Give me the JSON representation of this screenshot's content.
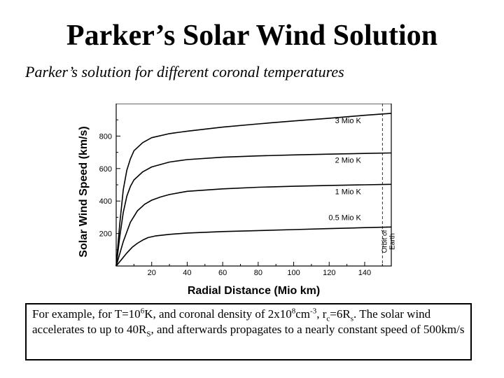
{
  "slide": {
    "title": "Parker’s Solar Wind Solution",
    "subtitle": "Parker’s solution for different coronal temperatures"
  },
  "note": {
    "t1": "For example, for T=10",
    "sup1": "6",
    "t2": "K, and coronal density of  2x10",
    "sup2": "8",
    "t3": "cm",
    "sup3": "-3",
    "t4": ", r",
    "sub4": "c",
    "t5": "=6R",
    "sub5": "s",
    "t6": ". The solar wind accelerates to up to 40R",
    "sub6": "S",
    "t7": ", and afterwards propagates to a nearly constant speed of 500km/s"
  },
  "chart_data": {
    "type": "line",
    "title": "",
    "xlabel": "Radial Distance (Mio km)",
    "ylabel": "Solar Wind Speed (km/s)",
    "xlim": [
      0,
      155
    ],
    "ylim": [
      0,
      1000
    ],
    "xticks": [
      20,
      40,
      60,
      80,
      100,
      120,
      140
    ],
    "yticks": [
      200,
      400,
      600,
      800
    ],
    "series": [
      {
        "name": "3 Mio K",
        "x": [
          0,
          2,
          4,
          6,
          8,
          10,
          15,
          20,
          30,
          40,
          60,
          80,
          100,
          120,
          140,
          155
        ],
        "y": [
          0,
          260,
          470,
          590,
          660,
          710,
          760,
          790,
          815,
          830,
          855,
          875,
          893,
          910,
          928,
          940
        ]
      },
      {
        "name": "2 Mio K",
        "x": [
          0,
          2,
          4,
          6,
          8,
          10,
          15,
          20,
          30,
          40,
          60,
          80,
          100,
          120,
          140,
          155
        ],
        "y": [
          0,
          180,
          330,
          430,
          490,
          530,
          580,
          610,
          640,
          655,
          670,
          678,
          684,
          689,
          693,
          696
        ]
      },
      {
        "name": "1 Mio K",
        "x": [
          0,
          4,
          8,
          12,
          16,
          20,
          25,
          30,
          40,
          60,
          80,
          100,
          120,
          140,
          155
        ],
        "y": [
          0,
          150,
          270,
          340,
          380,
          405,
          425,
          440,
          460,
          475,
          485,
          491,
          496,
          500,
          503
        ]
      },
      {
        "name": "0.5 Mio K",
        "x": [
          0,
          3,
          6,
          9,
          12,
          15,
          18,
          22,
          30,
          40,
          60,
          80,
          100,
          120,
          140,
          155
        ],
        "y": [
          0,
          40,
          80,
          115,
          140,
          160,
          175,
          185,
          195,
          203,
          212,
          218,
          224,
          230,
          236,
          240
        ]
      }
    ],
    "annotations": [
      {
        "text": "Orbit of Earth",
        "x": 150,
        "style": "dashed vertical line"
      }
    ]
  }
}
